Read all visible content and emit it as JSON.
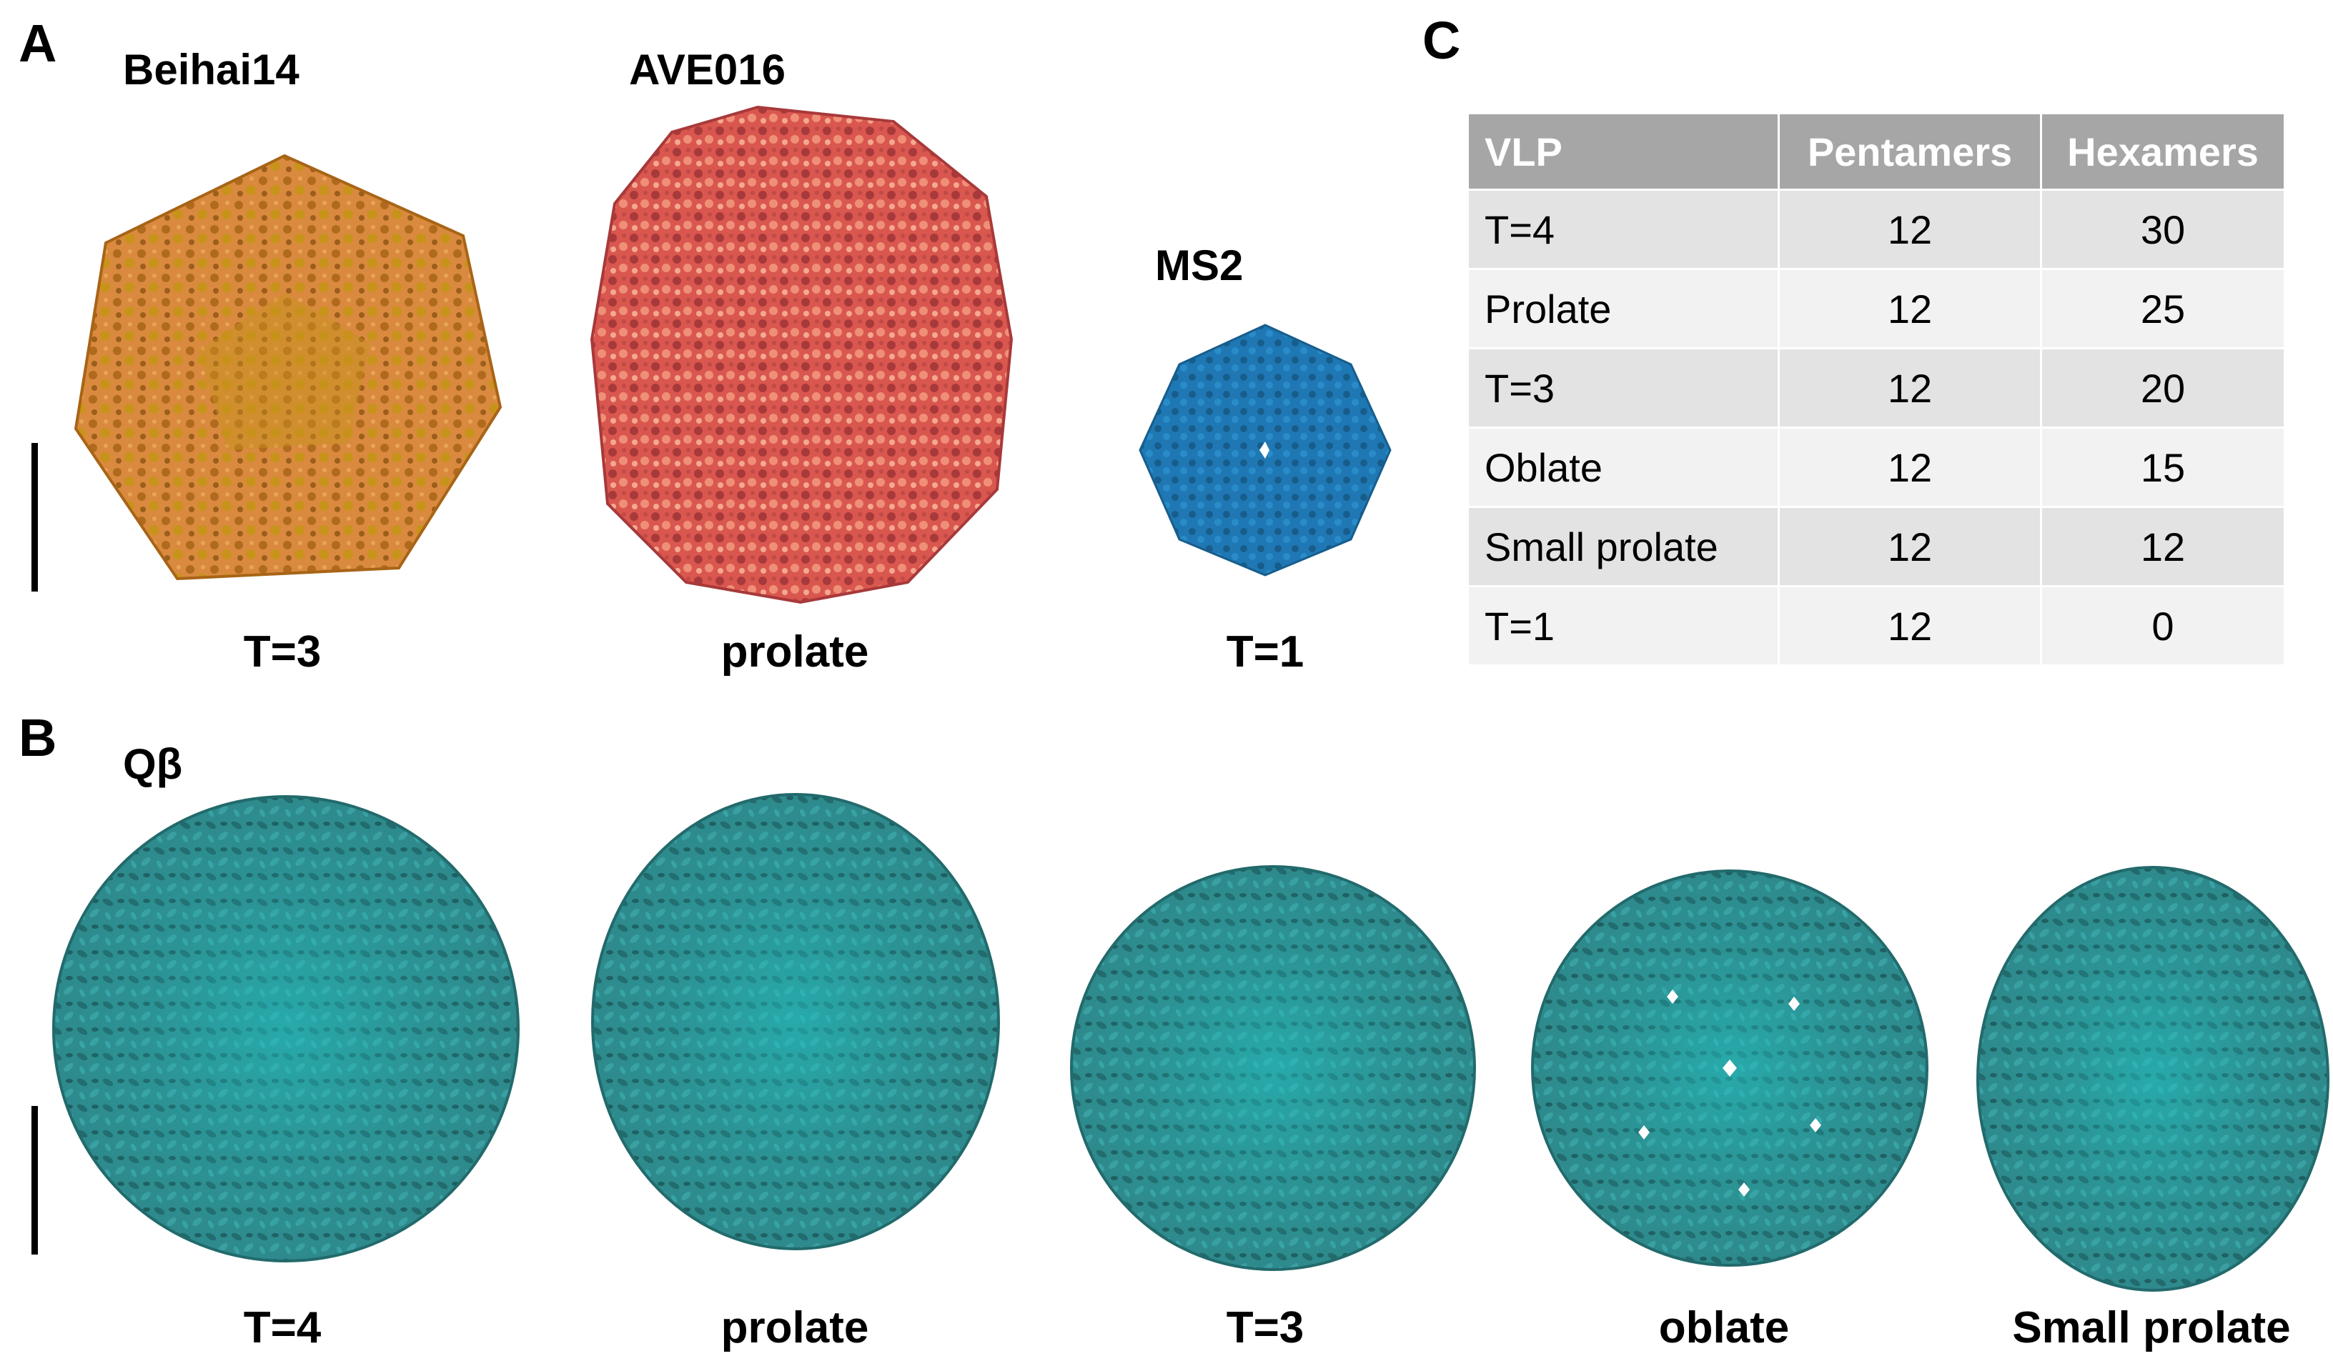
{
  "panels": {
    "A": {
      "letter": "A",
      "structures": [
        {
          "name": "Beihai14",
          "caption": "T=3",
          "color_main": "#d98a3e",
          "color_dark": "#b06a1e",
          "color_light": "#c8931a"
        },
        {
          "name": "AVE016",
          "caption": "prolate",
          "color_main": "#d9574f",
          "color_dark": "#a8393a",
          "color_light": "#f08f78"
        },
        {
          "name": "MS2",
          "caption": "T=1",
          "color_main": "#1f78b4",
          "color_dark": "#175d8c",
          "color_light": "#2a8bc9"
        }
      ]
    },
    "B": {
      "letter": "B",
      "virus_name": "Qβ",
      "structures": [
        {
          "caption": "T=4"
        },
        {
          "caption": "prolate"
        },
        {
          "caption": "T=3"
        },
        {
          "caption": "oblate"
        },
        {
          "caption": "Small prolate"
        }
      ],
      "color_main": "#2e8a8c",
      "color_dark": "#226a6c",
      "color_light": "#22c3c4"
    },
    "C": {
      "letter": "C",
      "table": {
        "headers": [
          "VLP",
          "Pentamers",
          "Hexamers"
        ],
        "rows": [
          [
            "T=4",
            "12",
            "30"
          ],
          [
            "Prolate",
            "12",
            "25"
          ],
          [
            "T=3",
            "12",
            "20"
          ],
          [
            "Oblate",
            "12",
            "15"
          ],
          [
            "Small prolate",
            "12",
            "12"
          ],
          [
            "T=1",
            "12",
            "0"
          ]
        ],
        "header_color": "#a6a6a6"
      }
    }
  }
}
